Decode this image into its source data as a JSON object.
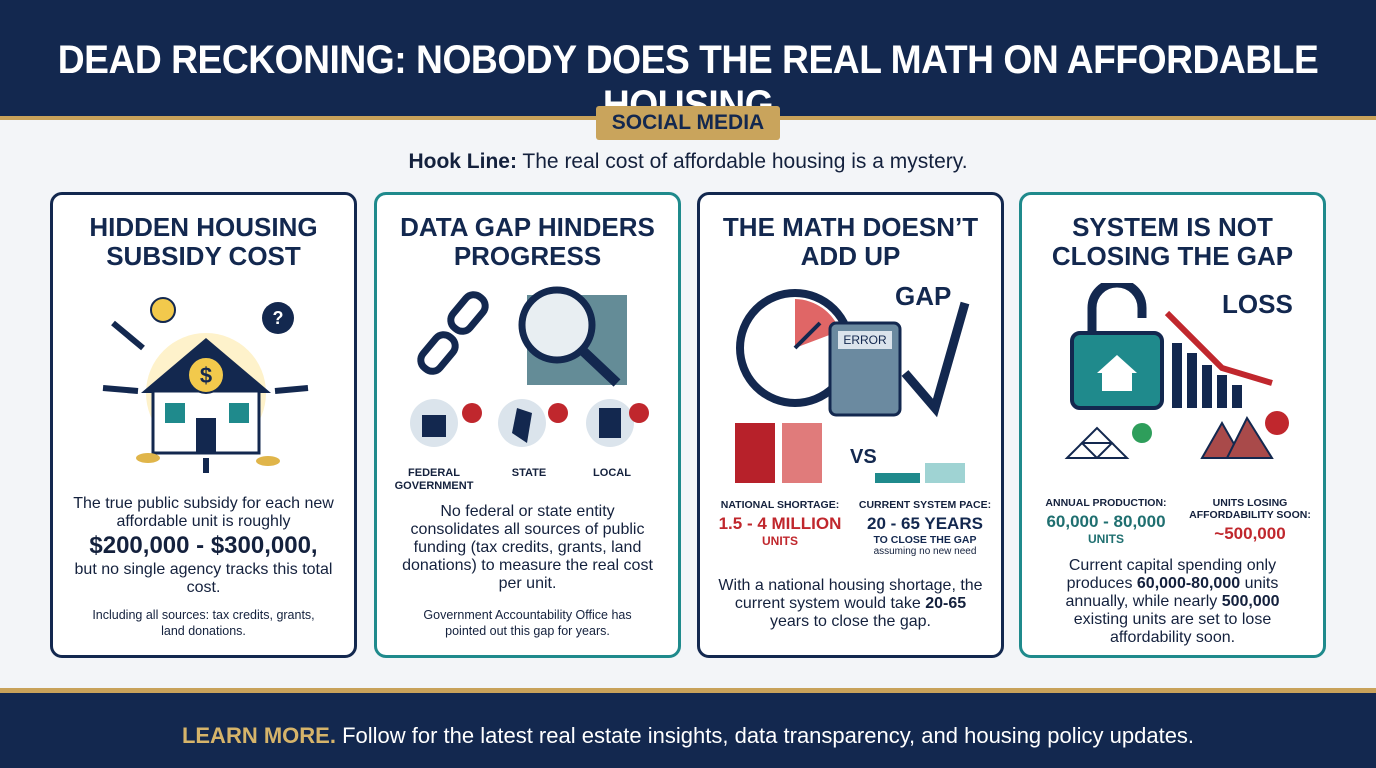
{
  "header": {
    "title": "DEAD RECKONING: NOBODY DOES THE REAL MATH ON AFFORDABLE HOUSING",
    "badge": "SOCIAL MEDIA"
  },
  "hook": {
    "label": "Hook Line:",
    "text": "The real cost of affordable housing is a mystery."
  },
  "cards": [
    {
      "title": "HIDDEN HOUSING SUBSIDY COST",
      "body": [
        {
          "text": "The true public subsidy for each new affordable unit is roughly",
          "bold": false
        },
        {
          "text": "$200,000 - $300,000,",
          "bold": true
        },
        {
          "text": "but no single agency tracks this total cost.",
          "bold": false
        }
      ],
      "note": "Including all sources: tax credits, grants, land donations."
    },
    {
      "title": "DATA GAP HINDERS PROGRESS",
      "levels": [
        "FEDERAL GOVERNMENT",
        "STATE",
        "LOCAL"
      ],
      "body": [
        {
          "text": "No federal or state entity consolidates all sources of public funding (tax credits, grants, land donations) to measure the real cost per unit.",
          "bold": false
        }
      ],
      "note": "Government Accountability Office has pointed out this gap for years."
    },
    {
      "title": "THE MATH DOESN’T ADD UP",
      "icon_labels": {
        "gap": "GAP",
        "error": "ERROR",
        "vs": "VS"
      },
      "stats": [
        {
          "label": "NATIONAL SHORTAGE:",
          "value": "1.5 - 4 MILLION",
          "unit": "UNITS"
        },
        {
          "label": "CURRENT SYSTEM PACE:",
          "value": "20 - 65 YEARS",
          "unit": "TO CLOSE THE GAP",
          "note": "assuming no new need"
        }
      ],
      "body": [
        {
          "text": "With a national housing shortage, the current system would take",
          "bold": false
        },
        {
          "text": "20-65",
          "bold": true
        },
        {
          "text": "years to close the gap.",
          "bold": false
        }
      ]
    },
    {
      "title": "SYSTEM IS NOT CLOSING THE GAP",
      "icon_labels": {
        "loss": "LOSS"
      },
      "stats": [
        {
          "label": "ANNUAL PRODUCTION:",
          "value": "60,000 - 80,000",
          "unit": "UNITS"
        },
        {
          "label": "UNITS LOSING AFFORDABILITY SOON:",
          "value": "~500,000"
        }
      ],
      "body": [
        {
          "text": "Current capital spending only produces",
          "bold": false
        },
        {
          "text": "60,000-80,000",
          "bold": true
        },
        {
          "text": "units annually, while nearly",
          "bold": false
        },
        {
          "text": "500,000",
          "bold": true
        },
        {
          "text": "existing units are set to lose affordability soon.",
          "bold": false
        }
      ]
    }
  ],
  "footer": {
    "lead": "LEARN MORE.",
    "text": "Follow for the latest real estate insights, data transparency, and housing policy updates."
  }
}
